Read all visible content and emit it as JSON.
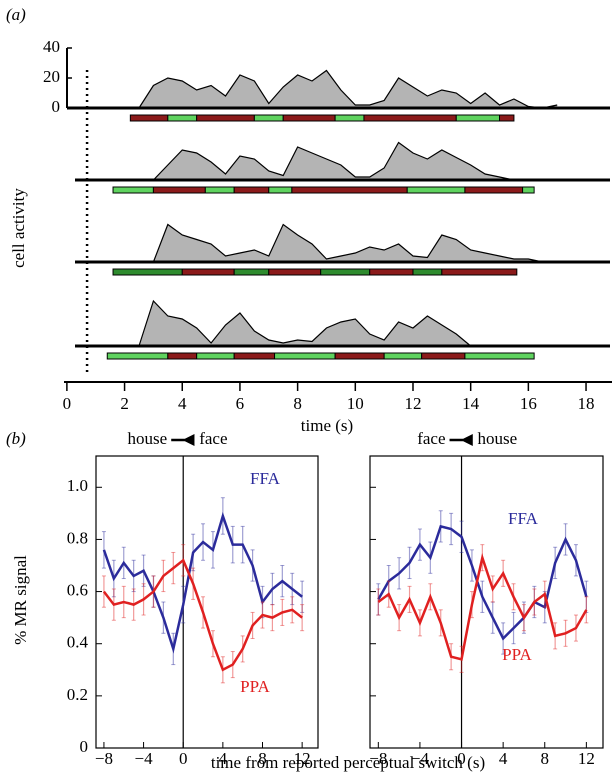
{
  "chart_data": [
    {
      "type": "area",
      "label": "(a)",
      "ylabel": "cell activity",
      "xlabel": "time (s)",
      "xlim": [
        -0.1,
        18.9
      ],
      "xticks": [
        0,
        2,
        4,
        6,
        8,
        10,
        12,
        14,
        16,
        18
      ],
      "ylim": [
        0,
        40
      ],
      "yticks": [
        0,
        20,
        40
      ],
      "vline": 0.7,
      "fill": "#b4b4b4",
      "x": [
        2.5,
        3,
        3.5,
        4,
        4.5,
        5,
        5.5,
        6,
        6.5,
        7,
        7.5,
        8,
        8.5,
        9,
        9.5,
        10,
        10.5,
        11,
        11.5,
        12,
        12.5,
        13,
        13.5,
        14,
        14.5,
        15,
        15.5,
        16,
        16.5,
        17
      ],
      "series": [
        {
          "values": [
            0,
            15,
            20,
            18,
            12,
            15,
            8,
            22,
            18,
            3,
            14,
            22,
            18,
            25,
            12,
            2,
            2,
            5,
            20,
            14,
            8,
            12,
            10,
            3,
            10,
            2,
            6,
            1,
            0,
            2
          ],
          "segments": [
            {
              "start": 2.2,
              "end": 3.5,
              "color": "#8b1a1a"
            },
            {
              "start": 3.5,
              "end": 4.5,
              "color": "#5fd35f"
            },
            {
              "start": 4.5,
              "end": 6.5,
              "color": "#8b1a1a"
            },
            {
              "start": 6.5,
              "end": 7.5,
              "color": "#5fd35f"
            },
            {
              "start": 7.5,
              "end": 9.3,
              "color": "#8b1a1a"
            },
            {
              "start": 9.3,
              "end": 10.3,
              "color": "#5fd35f"
            },
            {
              "start": 10.3,
              "end": 13.5,
              "color": "#8b1a1a"
            },
            {
              "start": 13.5,
              "end": 15,
              "color": "#5fd35f"
            },
            {
              "start": 15,
              "end": 15.5,
              "color": "#8b1a1a"
            }
          ]
        },
        {
          "values": [
            0,
            0,
            10,
            20,
            18,
            12,
            4,
            16,
            14,
            6,
            3,
            22,
            18,
            14,
            10,
            2,
            2,
            8,
            25,
            18,
            14,
            20,
            15,
            10,
            4,
            2,
            0,
            0,
            0,
            0
          ],
          "segments": [
            {
              "start": 1.6,
              "end": 3,
              "color": "#5fd35f"
            },
            {
              "start": 3,
              "end": 4.8,
              "color": "#8b1a1a"
            },
            {
              "start": 4.8,
              "end": 5.8,
              "color": "#5fd35f"
            },
            {
              "start": 5.8,
              "end": 7,
              "color": "#8b1a1a"
            },
            {
              "start": 7,
              "end": 7.8,
              "color": "#5fd35f"
            },
            {
              "start": 7.8,
              "end": 11.8,
              "color": "#8b1a1a"
            },
            {
              "start": 11.8,
              "end": 13.8,
              "color": "#5fd35f"
            },
            {
              "start": 13.8,
              "end": 15.8,
              "color": "#8b1a1a"
            },
            {
              "start": 15.8,
              "end": 16.2,
              "color": "#5fd35f"
            }
          ]
        },
        {
          "values": [
            0,
            0,
            25,
            18,
            15,
            12,
            4,
            6,
            8,
            4,
            25,
            18,
            12,
            2,
            4,
            6,
            10,
            8,
            12,
            4,
            3,
            18,
            15,
            8,
            6,
            4,
            2,
            2,
            0,
            0
          ],
          "segments": [
            {
              "start": 1.6,
              "end": 4,
              "color": "#2e8b2e"
            },
            {
              "start": 4,
              "end": 5.8,
              "color": "#8b1a1a"
            },
            {
              "start": 5.8,
              "end": 7,
              "color": "#2e8b2e"
            },
            {
              "start": 7,
              "end": 8.8,
              "color": "#8b1a1a"
            },
            {
              "start": 8.8,
              "end": 10.5,
              "color": "#2e8b2e"
            },
            {
              "start": 10.5,
              "end": 12,
              "color": "#8b1a1a"
            },
            {
              "start": 12,
              "end": 13,
              "color": "#2e8b2e"
            },
            {
              "start": 13,
              "end": 15.6,
              "color": "#8b1a1a"
            }
          ]
        },
        {
          "values": [
            0,
            30,
            20,
            18,
            12,
            2,
            14,
            22,
            10,
            4,
            2,
            4,
            3,
            12,
            16,
            18,
            8,
            4,
            16,
            12,
            20,
            14,
            8,
            0,
            0,
            0,
            0,
            0,
            0,
            0
          ],
          "segments": [
            {
              "start": 1.4,
              "end": 3.5,
              "color": "#5fd35f"
            },
            {
              "start": 3.5,
              "end": 4.5,
              "color": "#8b1a1a"
            },
            {
              "start": 4.5,
              "end": 5.8,
              "color": "#5fd35f"
            },
            {
              "start": 5.8,
              "end": 7.2,
              "color": "#8b1a1a"
            },
            {
              "start": 7.2,
              "end": 9.3,
              "color": "#5fd35f"
            },
            {
              "start": 9.3,
              "end": 11,
              "color": "#8b1a1a"
            },
            {
              "start": 11,
              "end": 12.3,
              "color": "#5fd35f"
            },
            {
              "start": 12.3,
              "end": 13.8,
              "color": "#8b1a1a"
            },
            {
              "start": 13.8,
              "end": 16.2,
              "color": "#5fd35f"
            }
          ]
        }
      ]
    },
    {
      "type": "line",
      "label": "(b)",
      "ylabel": "% MR signal",
      "xlabel": "time from reported perceptual switch (s)",
      "annotation": [
        "house",
        "face"
      ],
      "xlim": [
        -8.8,
        13.6
      ],
      "ylim": [
        0,
        1.12
      ],
      "xticks": [
        {
          "value": -8,
          "label": "−8"
        },
        {
          "value": -4,
          "label": "−4"
        },
        0,
        4,
        8,
        12
      ],
      "yticks": [
        0,
        0.2,
        0.4,
        0.6,
        0.8,
        {
          "value": 1,
          "label": "1.0"
        }
      ],
      "x": [
        -8,
        -7,
        -6,
        -5,
        -4,
        -3,
        -2,
        -1,
        0,
        1,
        2,
        3,
        4,
        5,
        6,
        7,
        8,
        9,
        10,
        11,
        12
      ],
      "series": [
        {
          "name": "FFA",
          "color": "#2b2b9b",
          "values": [
            0.76,
            0.65,
            0.71,
            0.66,
            0.68,
            0.6,
            0.5,
            0.38,
            0.55,
            0.75,
            0.79,
            0.76,
            0.89,
            0.78,
            0.78,
            0.7,
            0.56,
            0.61,
            0.64,
            0.61,
            0.58
          ],
          "errors": [
            0.07,
            0.07,
            0.06,
            0.06,
            0.06,
            0.06,
            0.06,
            0.06,
            0.07,
            0.07,
            0.07,
            0.07,
            0.07,
            0.07,
            0.07,
            0.06,
            0.06,
            0.06,
            0.06,
            0.06,
            0.06
          ]
        },
        {
          "name": "PPA",
          "color": "#e02020",
          "values": [
            0.6,
            0.55,
            0.56,
            0.55,
            0.57,
            0.6,
            0.66,
            0.69,
            0.72,
            0.63,
            0.52,
            0.4,
            0.3,
            0.32,
            0.38,
            0.47,
            0.51,
            0.5,
            0.52,
            0.53,
            0.5
          ],
          "errors": [
            0.06,
            0.06,
            0.06,
            0.06,
            0.06,
            0.06,
            0.06,
            0.06,
            0.06,
            0.06,
            0.06,
            0.05,
            0.05,
            0.05,
            0.05,
            0.05,
            0.05,
            0.05,
            0.05,
            0.05,
            0.05
          ]
        }
      ]
    },
    {
      "type": "line",
      "annotation": [
        "face",
        "house"
      ],
      "xlim": [
        -8.8,
        13.6
      ],
      "ylim": [
        0,
        1.12
      ],
      "xticks": [
        {
          "value": -8,
          "label": "−8"
        },
        {
          "value": -4,
          "label": "−4"
        },
        0,
        4,
        8,
        12
      ],
      "yticks": [
        0,
        0.2,
        0.4,
        0.6,
        0.8,
        1
      ],
      "x": [
        -8,
        -7,
        -6,
        -5,
        -4,
        -3,
        -2,
        -1,
        0,
        1,
        2,
        3,
        4,
        5,
        6,
        7,
        8,
        9,
        10,
        11,
        12
      ],
      "series": [
        {
          "name": "FFA",
          "color": "#2b2b9b",
          "values": [
            0.57,
            0.64,
            0.67,
            0.71,
            0.78,
            0.73,
            0.85,
            0.84,
            0.81,
            0.7,
            0.58,
            0.5,
            0.42,
            0.46,
            0.5,
            0.56,
            0.54,
            0.71,
            0.8,
            0.72,
            0.58
          ],
          "errors": [
            0.06,
            0.06,
            0.06,
            0.06,
            0.06,
            0.06,
            0.06,
            0.06,
            0.06,
            0.06,
            0.06,
            0.06,
            0.06,
            0.06,
            0.06,
            0.06,
            0.06,
            0.06,
            0.06,
            0.06,
            0.06
          ]
        },
        {
          "name": "PPA",
          "color": "#e02020",
          "values": [
            0.56,
            0.59,
            0.5,
            0.57,
            0.48,
            0.58,
            0.48,
            0.35,
            0.34,
            0.55,
            0.73,
            0.61,
            0.67,
            0.58,
            0.5,
            0.56,
            0.59,
            0.43,
            0.44,
            0.46,
            0.53
          ],
          "errors": [
            0.05,
            0.05,
            0.05,
            0.05,
            0.05,
            0.05,
            0.05,
            0.05,
            0.05,
            0.05,
            0.05,
            0.05,
            0.05,
            0.05,
            0.05,
            0.05,
            0.05,
            0.05,
            0.05,
            0.05,
            0.05
          ]
        }
      ]
    }
  ]
}
